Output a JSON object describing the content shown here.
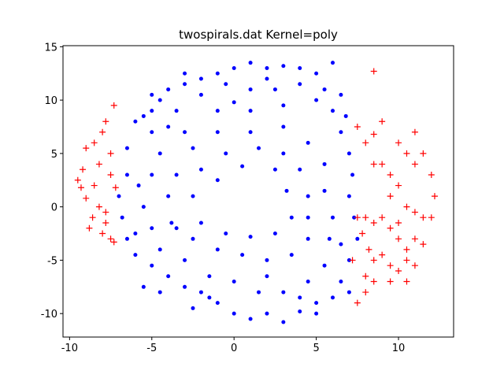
{
  "chart_data": {
    "type": "scatter",
    "title": "twospirals.dat Kernel=poly",
    "xlim": [
      -10.4,
      13.35
    ],
    "ylim": [
      -12.2,
      15.1
    ],
    "xticks": [
      -10,
      -5,
      0,
      5,
      10
    ],
    "yticks": [
      -10,
      -5,
      0,
      5,
      10,
      15
    ],
    "series": [
      {
        "color": "#0000ff",
        "marker": "dot",
        "x": [
          -6.5,
          -6,
          -5.5,
          -5,
          -4.5,
          -4,
          -3,
          -2,
          -1,
          0,
          1,
          2,
          3,
          4,
          5,
          6,
          5.5,
          4,
          2.5,
          1,
          -0.5,
          -2,
          -3.5,
          -5,
          -6.5,
          -7,
          -6.8,
          -6.5,
          -6,
          -5,
          -4,
          -3,
          -2,
          -1,
          0,
          1,
          2,
          3,
          4,
          5,
          6,
          6.5,
          7,
          7.5,
          7.3,
          7,
          7.2,
          7,
          6.5,
          6,
          5,
          3,
          1,
          -1,
          -3,
          -4.5,
          -5,
          -5.5,
          -5,
          -4.5,
          -3,
          -1.5,
          0,
          1.5,
          3,
          4.5,
          5.5,
          5.8,
          6,
          5.5,
          5.5,
          4.5,
          3,
          1,
          -1,
          -2.5,
          -3.5,
          -4,
          -3.8,
          -2.5,
          -1,
          0.5,
          2,
          3.5,
          4.5,
          4.5,
          4.5,
          4,
          3,
          1.5,
          -0.5,
          -2,
          -2.5,
          -2,
          -0.5,
          1,
          2.5,
          3.5,
          3.2,
          2.5,
          0.5,
          -1,
          -5.5,
          -4.5,
          -2.5,
          -5,
          -3,
          5,
          7,
          6.8,
          -6,
          2,
          -1.5,
          4,
          6.5,
          -5.8,
          0,
          -3.5,
          2,
          6.5,
          -4
        ],
        "values": [
          5.5,
          8,
          8.5,
          9,
          10,
          11,
          11.5,
          12,
          12.5,
          13,
          13.5,
          13,
          13.2,
          13,
          12.5,
          13.5,
          11,
          11.5,
          11,
          11,
          11.5,
          10.5,
          9,
          7,
          3,
          1,
          -1,
          -3,
          -4.5,
          -5.5,
          -6.5,
          -7.5,
          -8,
          -9,
          -10,
          -10.5,
          -10,
          -10.8,
          -9.8,
          -9,
          -8.5,
          -7,
          -5,
          -3,
          -1,
          1,
          3,
          5,
          7,
          9,
          10,
          9.5,
          9,
          9,
          7,
          5,
          3,
          0,
          -2,
          -4,
          -5,
          -6.5,
          -7,
          -8,
          -8,
          -7,
          -5.5,
          -3,
          -1,
          1.5,
          4,
          6,
          7.5,
          7,
          7,
          5.5,
          3,
          1,
          -1.5,
          -3,
          -4,
          -4.5,
          -5,
          -4.5,
          -3,
          -1,
          1,
          3.5,
          5,
          5.5,
          5,
          3.5,
          1,
          -1.5,
          -2.5,
          -2.8,
          -2.5,
          -1,
          1.5,
          3.5,
          3.8,
          2.5,
          -7.5,
          -8,
          -9.5,
          10.5,
          12.5,
          -10,
          -8,
          8.5,
          -2.5,
          12,
          -8.5,
          -8.5,
          10.5,
          2,
          9.8,
          -2,
          -6.5,
          -3.5,
          7.5
        ]
      },
      {
        "color": "#ff0000",
        "marker": "plus",
        "x": [
          8.5,
          7.5,
          8,
          8.5,
          9,
          9.5,
          10,
          10.5,
          11,
          11.5,
          12,
          12.2,
          11.5,
          11,
          12,
          11,
          10.5,
          10,
          9.5,
          9,
          8.5,
          8,
          7.5,
          7.8,
          8.2,
          8.5,
          9,
          9.5,
          10,
          10.5,
          11,
          11.5,
          10.5,
          9.5,
          8.5,
          8,
          7.5,
          8,
          7.2,
          10,
          11,
          9,
          8.5,
          9.5,
          10.5,
          10,
          -7.3,
          -7.8,
          -8,
          -8.5,
          -9,
          -7.5,
          -8.2,
          -9.2,
          -9.5,
          -8.5,
          -7.5,
          -7.2,
          -9.3,
          -9,
          -8.2,
          -7.8,
          -8.6,
          -8.8,
          -7.8,
          -8,
          -7.5,
          -7.3
        ],
        "values": [
          12.7,
          7.5,
          6,
          4,
          4,
          3,
          2,
          5,
          4,
          5,
          3,
          1,
          -1,
          -0.5,
          -1,
          -3,
          -4,
          -3,
          -2,
          -1,
          -1.5,
          -1,
          -1,
          -2.5,
          -4,
          -5,
          -4.5,
          -5.5,
          -6,
          -5,
          -5.5,
          -3.5,
          -7,
          -7,
          -7,
          -8,
          -9,
          -6.5,
          -5,
          6,
          7,
          8,
          6.8,
          1,
          0,
          -1.5,
          9.5,
          8,
          7,
          6,
          5.5,
          5,
          4,
          3.5,
          2.5,
          2,
          3,
          1.8,
          1.8,
          0.8,
          0,
          -0.5,
          -1,
          -2,
          -1.5,
          -2.5,
          -3,
          -3.3
        ]
      }
    ]
  }
}
